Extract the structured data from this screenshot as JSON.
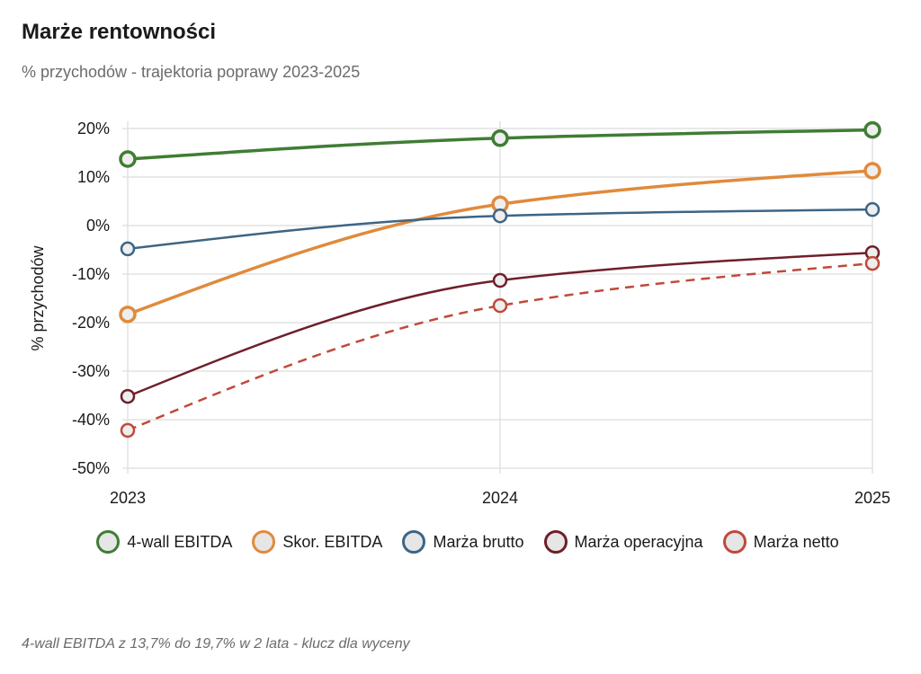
{
  "chart_data": {
    "type": "line",
    "title": "Marże rentowności",
    "subtitle": "% przychodów - trajektoria poprawy 2023-2025",
    "xlabel": "",
    "ylabel": "% przychodów",
    "x": [
      "2023",
      "2024",
      "2025"
    ],
    "ylim": [
      -50,
      20
    ],
    "yticks": [
      "20%",
      "10%",
      "0%",
      "-10%",
      "-20%",
      "-30%",
      "-40%",
      "-50%"
    ],
    "ytick_values": [
      20,
      10,
      0,
      -10,
      -20,
      -30,
      -40,
      -50
    ],
    "grid": true,
    "legend_position": "bottom",
    "series": [
      {
        "name": "4-wall EBITDA",
        "values": [
          13.7,
          18.0,
          19.7
        ],
        "color": "#3f7d34",
        "dashed": false,
        "width": 3.5
      },
      {
        "name": "Skor. EBITDA",
        "values": [
          -18.3,
          4.4,
          11.3
        ],
        "color": "#e08a3c",
        "dashed": false,
        "width": 3.5
      },
      {
        "name": "Marża brutto",
        "values": [
          -4.8,
          2.0,
          3.3
        ],
        "color": "#3d6585",
        "dashed": false,
        "width": 2.5
      },
      {
        "name": "Marża operacyjna",
        "values": [
          -35.2,
          -11.3,
          -5.6
        ],
        "color": "#6f1f2a",
        "dashed": false,
        "width": 2.5
      },
      {
        "name": "Marża netto",
        "values": [
          -42.2,
          -16.5,
          -7.8
        ],
        "color": "#c0493a",
        "dashed": true,
        "width": 2.5
      }
    ],
    "footnote": "4-wall EBITDA z 13,7% do 19,7% w 2 lata - klucz dla wyceny"
  }
}
